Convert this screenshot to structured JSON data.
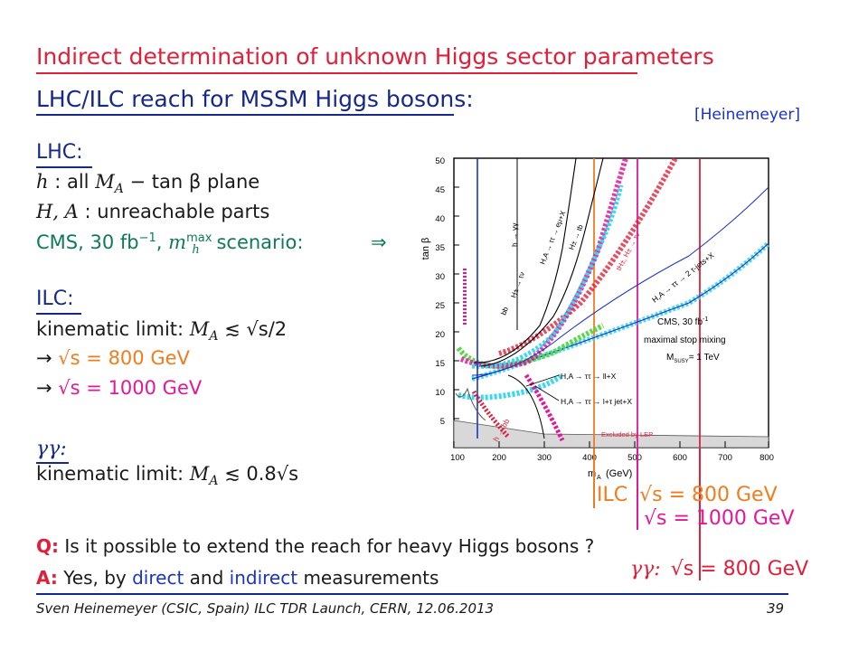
{
  "slide": {
    "title": "Indirect determination of unknown Higgs sector parameters",
    "subtitle": "LHC/ILC reach for MSSM Higgs bosons:",
    "citation": "[Heinemeyer]"
  },
  "lhc": {
    "heading": "LHC:",
    "line1_sym": "h",
    "line1_text": ": all",
    "line1_math": "M",
    "line1_sub": "A",
    "line1_rest": "− tan β plane",
    "line2_sym": "H, A",
    "line2_text": ": unreachable parts",
    "line3_text": "CMS, 30 fb",
    "line3_sup": "−1",
    "line3_comma": ",",
    "line3_m": "m",
    "line3_msub": "h",
    "line3_msup": "max",
    "line3_scen": "scenario:",
    "arrow": "⇒"
  },
  "ilc": {
    "heading": "ILC:",
    "kin_label": "kinematic limit:",
    "kin_m": "M",
    "kin_sub": "A",
    "kin_rest": "≲ √s/2",
    "arrow1": "→",
    "val1": "√s = 800 GeV",
    "arrow2": "→",
    "val2": "√s = 1000 GeV"
  },
  "gg": {
    "heading": "γγ:",
    "kin_label": "kinematic limit:",
    "kin_m": "M",
    "kin_sub": "A",
    "kin_rest": "≲ 0.8√s"
  },
  "qa": {
    "q_label": "Q:",
    "q_text": "Is it possible to extend the reach for heavy Higgs bosons ?",
    "a_label": "A:",
    "a_pre": "Yes, by",
    "a_direct": "direct",
    "a_and": "and",
    "a_indirect": "indirect",
    "a_post": "measurements"
  },
  "legend_right": {
    "ilc_label": "ILC",
    "ilc800": "√s = 800 GeV",
    "ilc1000": "√s = 1000 GeV",
    "gg_label": "γγ:",
    "gg800": "√s = 800 GeV"
  },
  "plot": {
    "ylabel": "tan β",
    "xlabel": "m",
    "xlabel_sub": "A",
    "xlabel_unit": "(GeV)",
    "x_ticks": [
      "100",
      "200",
      "300",
      "400",
      "500",
      "600",
      "700",
      "800"
    ],
    "y_ticks": [
      "5",
      "10",
      "15",
      "20",
      "25",
      "30",
      "35",
      "40",
      "45",
      "50"
    ],
    "annot_cms": "CMS, 30 fb",
    "annot_cms_sup": "-1",
    "annot_stop": "maximal stop mixing",
    "annot_msusy": "M",
    "annot_msusy_sub": "SUSY",
    "annot_msusy_val": "= 1 TeV",
    "label_hAtautau_ll": "H,A → ττ → ll+X",
    "label_hAtautau_ljet": "H,A → ττ → l+τ jet+X",
    "label_hAtautau_2jet": "H,A → ττ → 2 τ-jets+X",
    "label_excluded": "Excluded by LEP",
    "label_hgg": "h → γγ",
    "label_hbb": "h → bb",
    "label_htaunu": "H± → τν",
    "label_ttH": "tH±, H± → τν",
    "label_tb": "H± → tb",
    "label_emu": "H,A → ττ → eμ+X",
    "label_bb": "bb",
    "colors": {
      "red": "#e0203a",
      "navy": "#16288a",
      "orange": "#f07c1e",
      "magenta": "#e0189a",
      "blue": "#1a33c8",
      "cyan": "#38d8f0",
      "green": "#5ad84a"
    }
  },
  "footer": {
    "text": "Sven Heinemeyer (CSIC, Spain) ILC TDR Launch, CERN, 12.06.2013",
    "page": "39"
  }
}
